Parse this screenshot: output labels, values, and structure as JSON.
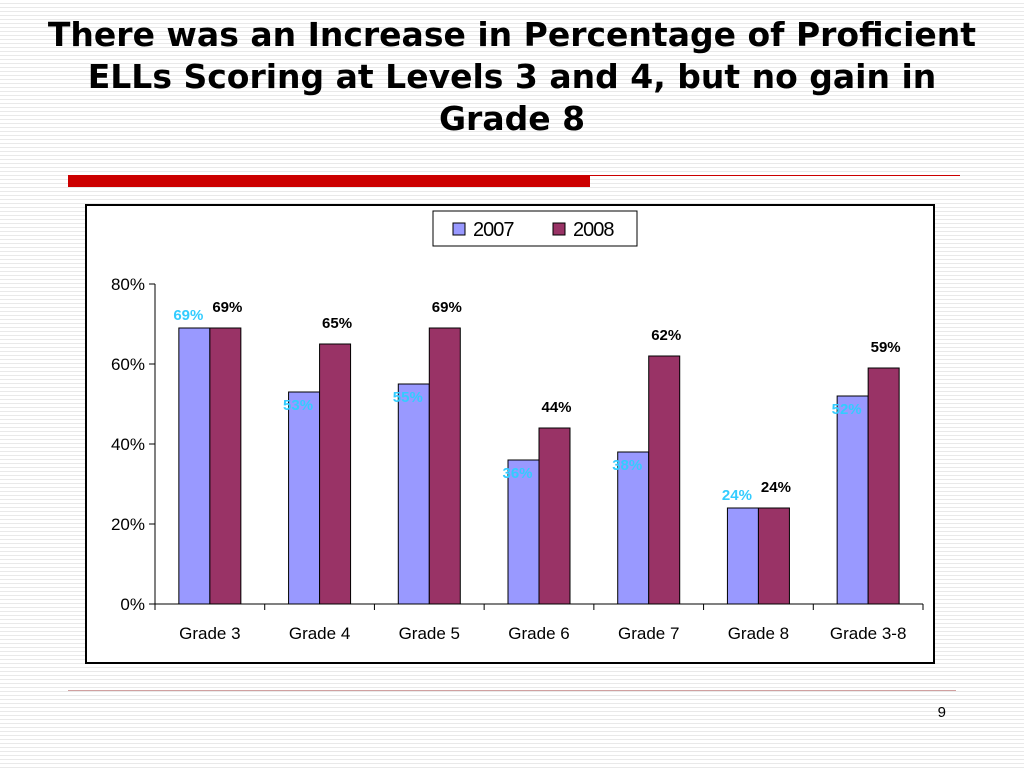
{
  "slide": {
    "title_lines": [
      "There was an Increase in Percentage of Proficient",
      "ELLs Scoring at Levels 3 and 4, but no gain in",
      "Grade 8"
    ],
    "page_number": "9"
  },
  "colors": {
    "accent": "#cc0000",
    "series_2007": "#9999ff",
    "series_2008": "#993366",
    "label_2007": "#33ccff",
    "label_2008": "#000000"
  },
  "chart_data": {
    "type": "bar",
    "categories": [
      "Grade 3",
      "Grade 4",
      "Grade 5",
      "Grade 6",
      "Grade 7",
      "Grade 8",
      "Grade 3-8"
    ],
    "series": [
      {
        "name": "2007",
        "values": [
          69,
          53,
          55,
          36,
          38,
          24,
          52
        ],
        "labels": [
          "69%",
          "53%",
          "55%",
          "36%",
          "38%",
          "24%",
          "52%"
        ]
      },
      {
        "name": "2008",
        "values": [
          69,
          65,
          69,
          44,
          62,
          24,
          59
        ],
        "labels": [
          "69%",
          "65%",
          "69%",
          "44%",
          "62%",
          "24%",
          "59%"
        ]
      }
    ],
    "y_ticks": [
      "0%",
      "20%",
      "40%",
      "60%",
      "80%"
    ],
    "ylim": [
      0,
      80
    ],
    "grid": false,
    "legend_position": "top-center"
  }
}
